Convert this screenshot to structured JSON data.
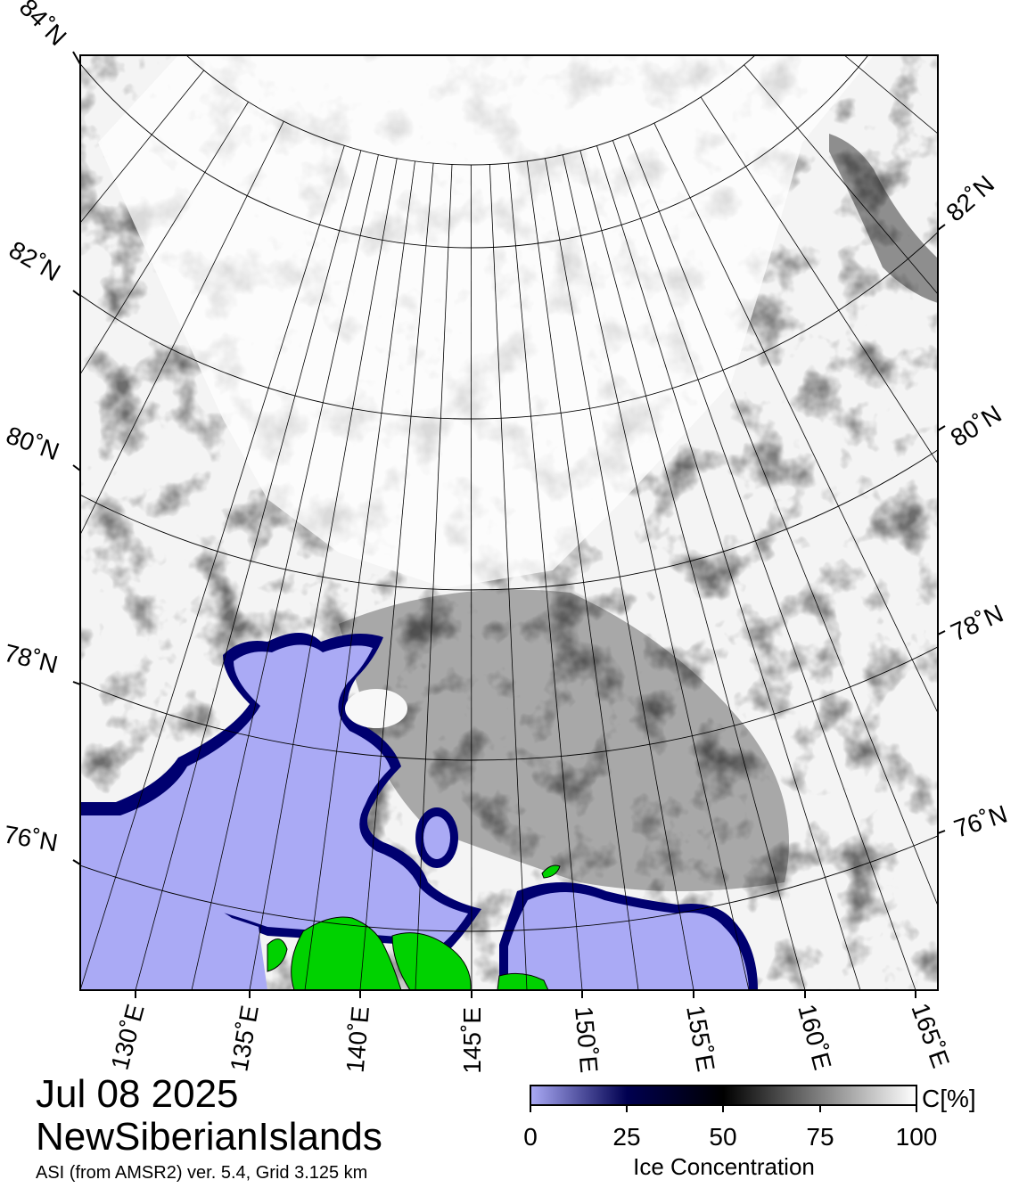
{
  "map": {
    "date": "Jul 08 2025",
    "region": "NewSiberianIslands",
    "product": "ASI (from AMSR2) ver. 5.4,  Grid 3.125 km",
    "latitude_labels": [
      "84˚N",
      "82˚N",
      "80˚N",
      "78˚N",
      "76˚N"
    ],
    "latitude_labels_right": [
      "82˚N",
      "80˚N",
      "78˚N",
      "76˚N"
    ],
    "longitude_labels": [
      "130˚E",
      "135˚E",
      "140˚E",
      "145˚E",
      "150˚E",
      "155˚E",
      "160˚E",
      "165˚E"
    ],
    "colors": {
      "open_water": "#aaaaf5",
      "land": "#00d200",
      "low_ice_edge": "#000060",
      "full_ice": "#ffffff"
    }
  },
  "colorbar": {
    "label": "Ice Concentration",
    "unit": "C[%]",
    "ticks": [
      "0",
      "25",
      "50",
      "75",
      "100"
    ],
    "stops": [
      "#aaaaf5",
      "#000050",
      "#000000",
      "#ffffff"
    ]
  }
}
